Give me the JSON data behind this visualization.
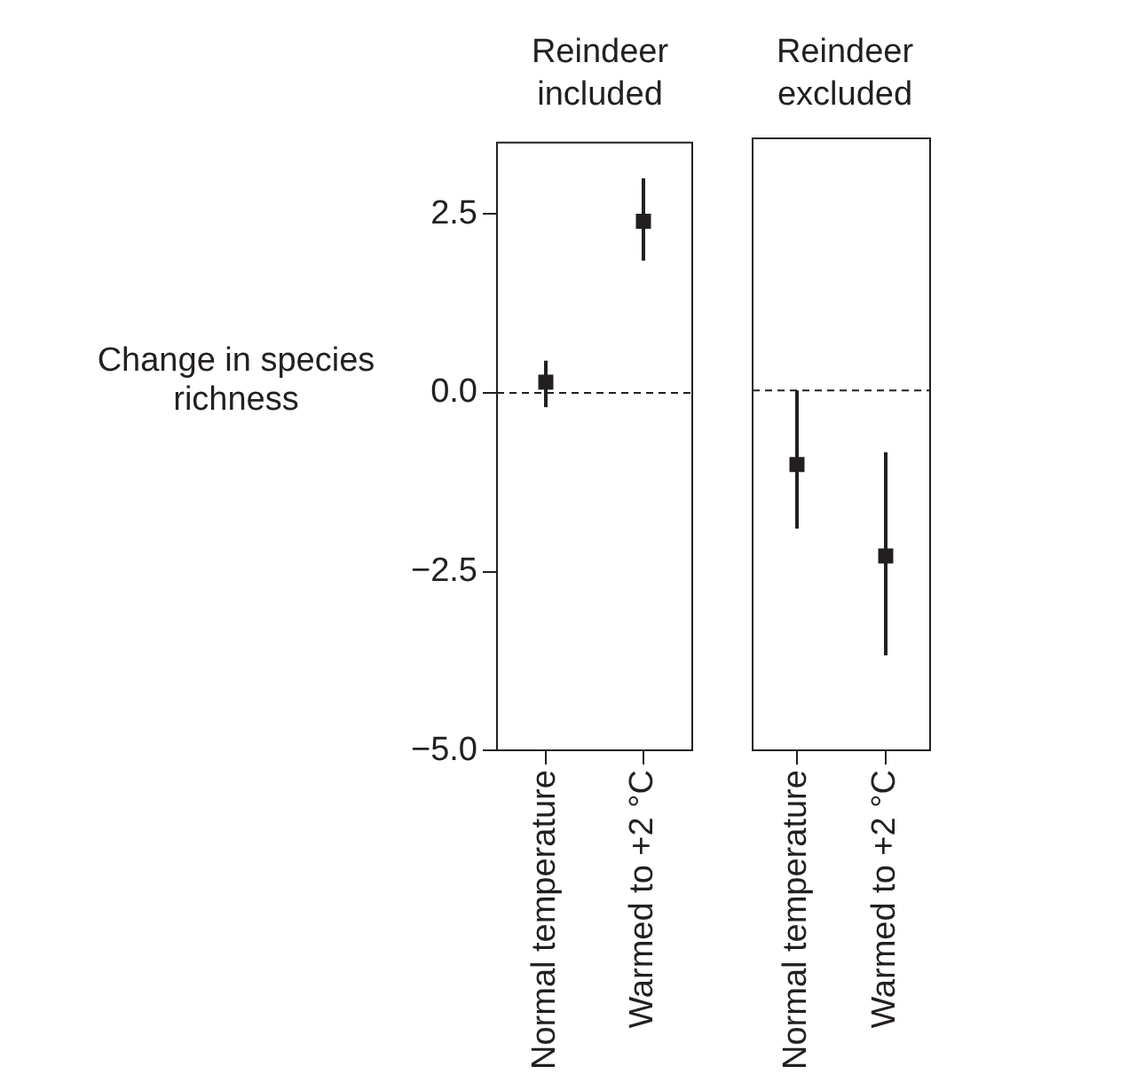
{
  "chart_data": [
    {
      "type": "scatter",
      "title": "Reindeer included",
      "ylabel": "Change in species richness",
      "categories": [
        "Normal temperature",
        "Warmed to +2 °C"
      ],
      "series": [
        {
          "color": "#231f20",
          "values": [
            0.15,
            2.4
          ],
          "errors": [
            [
              -0.2,
              0.45
            ],
            [
              1.85,
              3.0
            ]
          ]
        }
      ],
      "ylim": [
        -5,
        3.5
      ],
      "yticks": [
        {
          "value": -5,
          "label": "−5.0"
        },
        {
          "value": -2.5,
          "label": "−2.5"
        },
        {
          "value": 0,
          "label": "0.0"
        },
        {
          "value": 2.5,
          "label": "2.5"
        }
      ],
      "ref_lines": [
        {
          "axis": "y",
          "value": 0,
          "line_style": "dashed"
        }
      ],
      "marker": "square",
      "grid": false,
      "legend": false
    },
    {
      "type": "scatter",
      "title": "Reindeer excluded",
      "categories": [
        "Normal temperature",
        "Warmed to +2 °C"
      ],
      "series": [
        {
          "color": "#231f20",
          "values": [
            -1.03,
            -2.3
          ],
          "errors": [
            [
              -1.92,
              0.0
            ],
            [
              -3.68,
              -0.86
            ]
          ]
        }
      ],
      "ylim": [
        -5,
        3.5
      ],
      "ref_lines": [
        {
          "axis": "y",
          "value": 0,
          "line_style": "dashed"
        }
      ],
      "marker": "square",
      "grid": false,
      "legend": false,
      "tick_labels": "x"
    }
  ]
}
